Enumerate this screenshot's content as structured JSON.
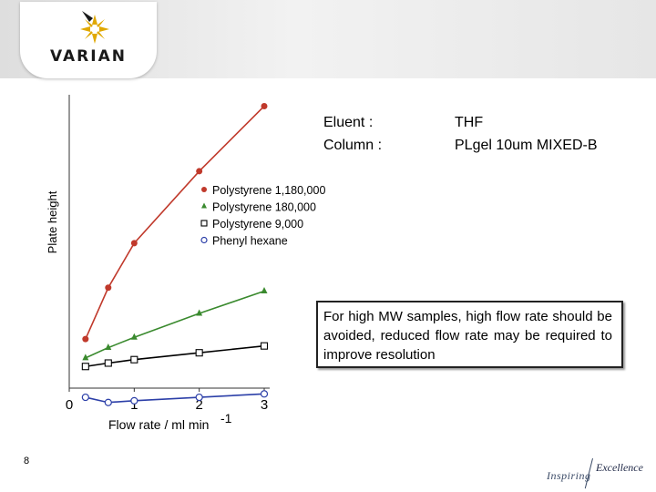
{
  "header": {
    "logo_text": "VARIAN"
  },
  "info": {
    "eluent_label": "Eluent :",
    "eluent_value": "THF",
    "column_label": "Column :",
    "column_value": "PLgel 10um MIXED-B"
  },
  "note": "For high MW samples, high flow rate should be avoided, reduced flow rate may be required to improve resolution",
  "footer": {
    "page_number": "8",
    "tagline_left": "Inspiring",
    "tagline_right": "Excellence"
  },
  "chart_data": {
    "type": "line",
    "ylabel": "Plate height",
    "xlabel": "Flow rate / ml min",
    "xlabel_superscript": "-1",
    "xlim": [
      0,
      3
    ],
    "x_ticks": [
      "0",
      "1",
      "2",
      "3"
    ],
    "grid": false,
    "legend_position": "top-center",
    "series": [
      {
        "name": "Polystyrene 1,180,000",
        "marker": "filled-circle",
        "color": "#c0392b",
        "x": [
          0.25,
          0.6,
          1.0,
          2.0,
          3.0
        ],
        "y": [
          1.8,
          4.8,
          7.4,
          11.6,
          15.4
        ]
      },
      {
        "name": "Polystyrene 180,000",
        "marker": "filled-triangle",
        "color": "#3a8a2e",
        "x": [
          0.25,
          0.6,
          1.0,
          2.0,
          3.0
        ],
        "y": [
          0.7,
          1.3,
          1.9,
          3.3,
          4.6
        ]
      },
      {
        "name": "Polystyrene 9,000",
        "marker": "open-square",
        "color": "#000000",
        "x": [
          0.25,
          0.6,
          1.0,
          2.0,
          3.0
        ],
        "y": [
          0.2,
          0.4,
          0.6,
          1.0,
          1.4
        ]
      },
      {
        "name": "Phenyl hexane",
        "marker": "open-circle",
        "color": "#2c3fa8",
        "x": [
          0.25,
          0.6,
          1.0,
          2.0,
          3.0
        ],
        "y": [
          -1.6,
          -1.9,
          -1.8,
          -1.6,
          -1.4
        ]
      }
    ]
  }
}
